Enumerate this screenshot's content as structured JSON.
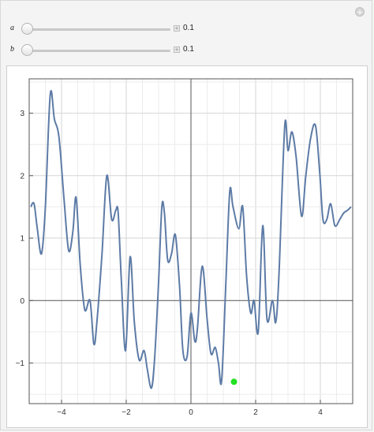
{
  "controls": [
    {
      "label": "a",
      "value": "0.1"
    },
    {
      "label": "b",
      "value": "0.1"
    }
  ],
  "plus_glyph": "+",
  "chart_data": {
    "type": "line",
    "xlim": [
      -5,
      5
    ],
    "ylim": [
      -1.65,
      3.55
    ],
    "x_ticks": [
      -4,
      -2,
      0,
      2,
      4
    ],
    "y_ticks": [
      -1,
      0,
      1,
      2,
      3
    ],
    "x_tick_labels": [
      "−4",
      "−2",
      "0",
      "2",
      "4"
    ],
    "y_tick_labels": [
      "−1",
      "0",
      "1",
      "2",
      "3"
    ],
    "grid": true,
    "line_color": "#5d7ba6",
    "marker_color": "#22e022",
    "series": [
      {
        "x": [
          -4.95,
          -4.85,
          -4.75,
          -4.62,
          -4.5,
          -4.35,
          -4.22,
          -4.08,
          -3.92,
          -3.78,
          -3.65,
          -3.55,
          -3.42,
          -3.28,
          -3.12,
          -3.0,
          -2.9,
          -2.75,
          -2.6,
          -2.45,
          -2.32,
          -2.25,
          -2.15,
          -2.02,
          -1.88,
          -1.75,
          -1.6,
          -1.45,
          -1.35,
          -1.22,
          -1.12,
          -1.0,
          -0.9,
          -0.82,
          -0.72,
          -0.6,
          -0.48,
          -0.35,
          -0.25,
          -0.12,
          0.0,
          0.12,
          0.2,
          0.35,
          0.5,
          0.62,
          0.75,
          0.85,
          0.95,
          1.08,
          1.2,
          1.3,
          1.48,
          1.6,
          1.72,
          1.85,
          1.95,
          2.08,
          2.22,
          2.35,
          2.52,
          2.62,
          2.72,
          2.9,
          3.0,
          3.12,
          3.25,
          3.42,
          3.55,
          3.7,
          3.85,
          3.98,
          4.08,
          4.2,
          4.32,
          4.45,
          4.6,
          4.72,
          4.85,
          4.95
        ],
        "y": [
          1.5,
          1.55,
          1.15,
          0.75,
          1.5,
          3.3,
          2.9,
          2.62,
          1.6,
          0.8,
          1.1,
          1.65,
          0.55,
          -0.15,
          0.0,
          -0.7,
          -0.3,
          0.75,
          2.0,
          1.3,
          1.45,
          1.4,
          0.3,
          -0.8,
          0.7,
          -0.35,
          -0.95,
          -0.8,
          -1.1,
          -1.4,
          -0.9,
          0.3,
          1.5,
          1.4,
          0.65,
          0.75,
          1.05,
          0.2,
          -0.8,
          -0.9,
          -0.2,
          -0.65,
          -0.45,
          0.55,
          -0.3,
          -0.85,
          -0.75,
          -1.0,
          -1.28,
          0.3,
          1.75,
          1.5,
          1.15,
          1.5,
          0.4,
          -0.2,
          0.0,
          -0.5,
          1.2,
          -0.3,
          0.0,
          -0.35,
          0.4,
          2.8,
          2.4,
          2.7,
          2.3,
          1.35,
          2.0,
          2.6,
          2.8,
          2.05,
          1.3,
          1.3,
          1.55,
          1.2,
          1.3,
          1.4,
          1.45,
          1.5
        ],
        "marker": {
          "x": 1.33,
          "y": -1.3
        }
      }
    ]
  }
}
